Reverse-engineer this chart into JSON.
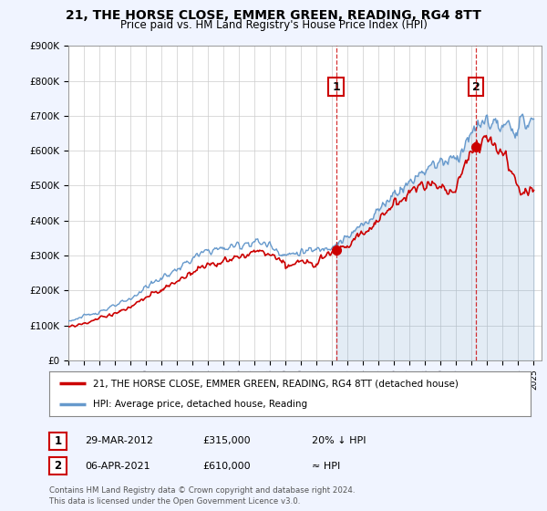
{
  "title": "21, THE HORSE CLOSE, EMMER GREEN, READING, RG4 8TT",
  "subtitle": "Price paid vs. HM Land Registry's House Price Index (HPI)",
  "background_color": "#f0f4ff",
  "plot_bg_color": "#ffffff",
  "ylim": [
    0,
    900000
  ],
  "yticks": [
    0,
    100000,
    200000,
    300000,
    400000,
    500000,
    600000,
    700000,
    800000,
    900000
  ],
  "ytick_labels": [
    "£0",
    "£100K",
    "£200K",
    "£300K",
    "£400K",
    "£500K",
    "£600K",
    "£700K",
    "£800K",
    "£900K"
  ],
  "xlim_start": 1995.0,
  "xlim_end": 2025.5,
  "hpi_color": "#6699cc",
  "price_color": "#cc0000",
  "marker1_date": 2012.25,
  "marker1_price": 315000,
  "marker2_date": 2021.27,
  "marker2_price": 610000,
  "legend_line1": "21, THE HORSE CLOSE, EMMER GREEN, READING, RG4 8TT (detached house)",
  "legend_line2": "HPI: Average price, detached house, Reading",
  "annotation1_date": "29-MAR-2012",
  "annotation1_price": "£315,000",
  "annotation1_hpi": "20% ↓ HPI",
  "annotation2_date": "06-APR-2021",
  "annotation2_price": "£610,000",
  "annotation2_hpi": "≈ HPI",
  "footer": "Contains HM Land Registry data © Crown copyright and database right 2024.\nThis data is licensed under the Open Government Licence v3.0."
}
